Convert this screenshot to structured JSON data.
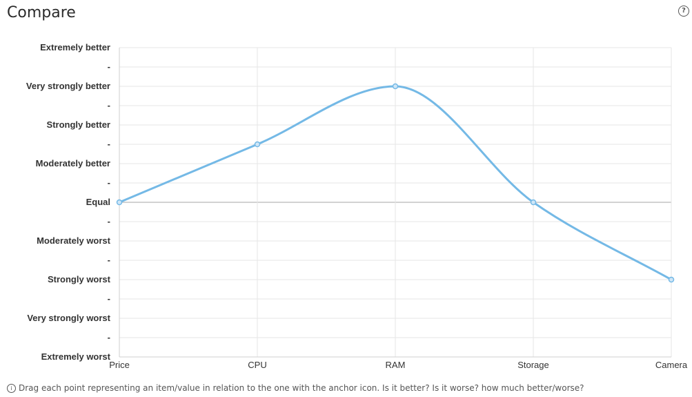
{
  "header": {
    "title": "Compare",
    "help_icon": "question-circle-icon",
    "help_glyph": "?"
  },
  "footer": {
    "info_icon": "info-circle-icon",
    "info_glyph": "i",
    "text": "Drag each point representing an item/value in relation to the one with the anchor icon. Is it better? Is it worse? how much better/worse?"
  },
  "chart_data": {
    "type": "line",
    "categories": [
      "Price",
      "CPU",
      "RAM",
      "Storage",
      "Camera"
    ],
    "y_levels": [
      "Extremely worst",
      "-",
      "Very strongly worst",
      "-",
      "Strongly worst",
      "-",
      "Moderately worst",
      "-",
      "Equal",
      "-",
      "Moderately better",
      "-",
      "Strongly better",
      "-",
      "Very strongly better",
      "-",
      "Extremely better"
    ],
    "ylim": [
      -8,
      8
    ],
    "series": [
      {
        "values": [
          0,
          3,
          6,
          0,
          -4
        ]
      }
    ],
    "line_color": "#74b9e6",
    "grid": true,
    "smooth": true
  }
}
